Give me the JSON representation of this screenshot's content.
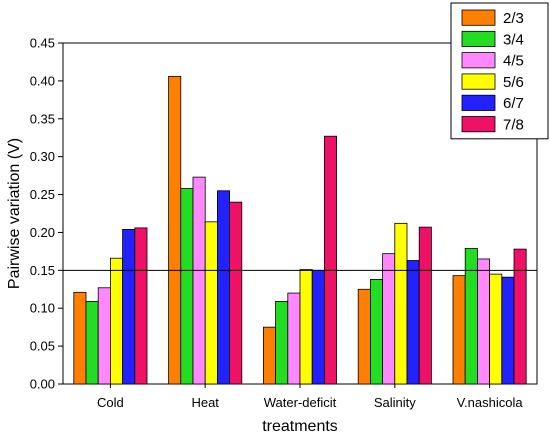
{
  "chart_data": {
    "type": "bar",
    "xlabel": "treatments",
    "ylabel": "Pairwise variation (V)",
    "ylim": [
      0,
      0.45
    ],
    "yticks": [
      "0.00",
      "0.05",
      "0.10",
      "0.15",
      "0.20",
      "0.25",
      "0.30",
      "0.35",
      "0.40",
      "0.45"
    ],
    "reference_line": 0.15,
    "grid": false,
    "legend_position": "top-right",
    "categories": [
      "Cold",
      "Heat",
      "Water-deficit",
      "Salinity",
      "V.nashicola"
    ],
    "series": [
      {
        "name": "2/3",
        "color": "#ff7f00",
        "values": [
          0.121,
          0.406,
          0.075,
          0.125,
          0.143
        ]
      },
      {
        "name": "3/4",
        "color": "#22dd22",
        "values": [
          0.109,
          0.258,
          0.109,
          0.138,
          0.179
        ]
      },
      {
        "name": "4/5",
        "color": "#ff88ff",
        "values": [
          0.127,
          0.273,
          0.12,
          0.172,
          0.165
        ]
      },
      {
        "name": "5/6",
        "color": "#ffff00",
        "values": [
          0.166,
          0.214,
          0.151,
          0.212,
          0.145
        ]
      },
      {
        "name": "6/7",
        "color": "#2222ff",
        "values": [
          0.204,
          0.255,
          0.15,
          0.163,
          0.141
        ]
      },
      {
        "name": "7/8",
        "color": "#ee1166",
        "values": [
          0.206,
          0.24,
          0.327,
          0.207,
          0.178
        ]
      }
    ]
  }
}
